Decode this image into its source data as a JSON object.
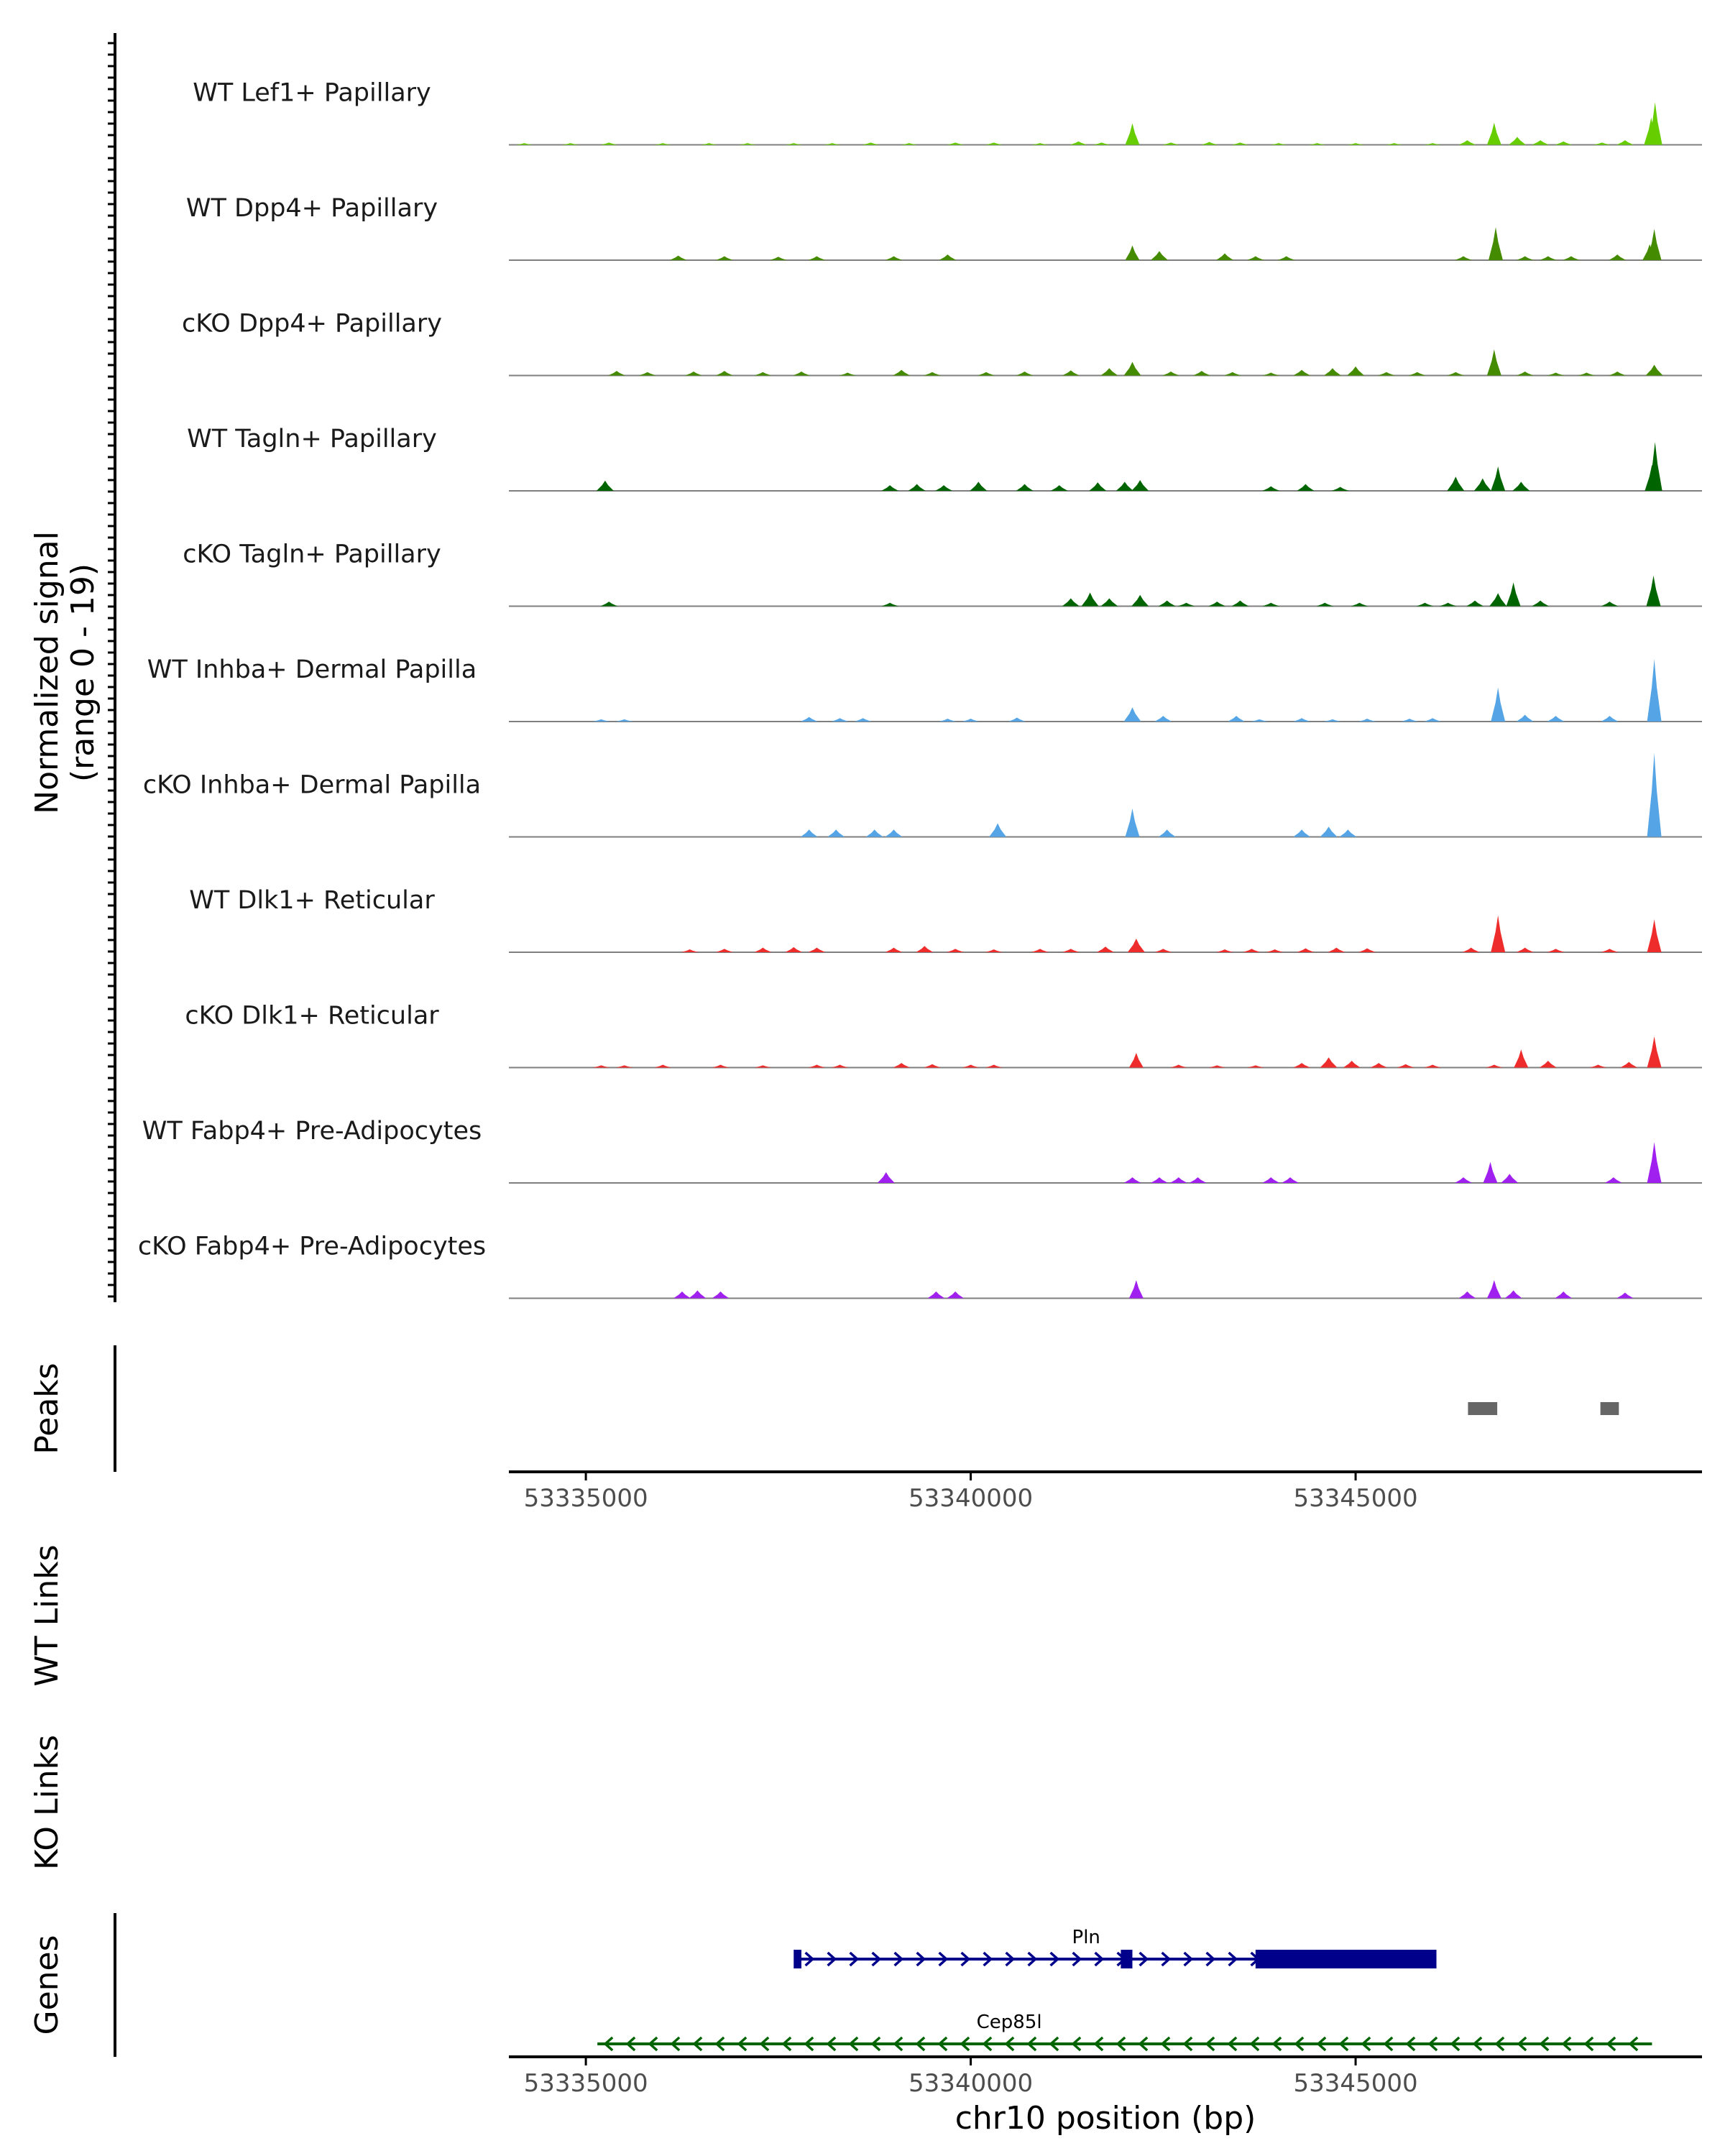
{
  "colors": {
    "axis": "#000000",
    "baseline": "#7f7f7f",
    "tick_text": "#4d4d4d",
    "peak_fill": "#666666",
    "gene_plus": "#00008b",
    "gene_minus": "#006400"
  },
  "labels": {
    "y_signal_line1": "Normalized signal",
    "y_signal_line2": "(range 0 - 19)",
    "peaks": "Peaks",
    "wt_links": "WT Links",
    "ko_links": "KO Links",
    "genes": "Genes",
    "x_axis": "chr10 position (bp)"
  },
  "chart_data": {
    "type": "area",
    "title": "",
    "xlabel": "chr10 position (bp)",
    "ylabel": "Normalized signal (range 0 - 19)",
    "chromosome": "chr10",
    "xlim": [
      53334000,
      53349500
    ],
    "ylim": [
      0,
      19
    ],
    "x_ticks": [
      53335000,
      53340000,
      53345000
    ],
    "x_tick_labels": [
      "53335000",
      "53340000",
      "53345000"
    ],
    "tracks": [
      {
        "name": "WT Lef1+ Papillary",
        "color": "#66cd00",
        "peaks": [
          [
            53334200,
            0.3
          ],
          [
            53334800,
            0.3
          ],
          [
            53335300,
            0.4
          ],
          [
            53336000,
            0.3
          ],
          [
            53336600,
            0.3
          ],
          [
            53337100,
            0.3
          ],
          [
            53337700,
            0.3
          ],
          [
            53338200,
            0.3
          ],
          [
            53338700,
            0.4
          ],
          [
            53339200,
            0.3
          ],
          [
            53339800,
            0.4
          ],
          [
            53340300,
            0.4
          ],
          [
            53340900,
            0.3
          ],
          [
            53341400,
            0.6
          ],
          [
            53341700,
            0.4
          ],
          [
            53342100,
            3.8
          ],
          [
            53342600,
            0.4
          ],
          [
            53343100,
            0.5
          ],
          [
            53343500,
            0.4
          ],
          [
            53344000,
            0.3
          ],
          [
            53344500,
            0.3
          ],
          [
            53345000,
            0.3
          ],
          [
            53345500,
            0.3
          ],
          [
            53346000,
            0.3
          ],
          [
            53346450,
            0.8
          ],
          [
            53346800,
            3.9
          ],
          [
            53347100,
            1.4
          ],
          [
            53347400,
            0.8
          ],
          [
            53347700,
            0.6
          ],
          [
            53348200,
            0.4
          ],
          [
            53348500,
            0.8
          ],
          [
            53348840,
            4.8
          ],
          [
            53348890,
            7.5
          ]
        ]
      },
      {
        "name": "WT Dpp4+ Papillary",
        "color": "#458b00",
        "peaks": [
          [
            53336200,
            0.8
          ],
          [
            53336800,
            0.7
          ],
          [
            53337500,
            0.6
          ],
          [
            53338000,
            0.7
          ],
          [
            53339000,
            0.7
          ],
          [
            53339700,
            1.0
          ],
          [
            53342100,
            2.6
          ],
          [
            53342450,
            1.6
          ],
          [
            53343300,
            1.2
          ],
          [
            53343700,
            0.7
          ],
          [
            53344100,
            0.7
          ],
          [
            53346400,
            0.7
          ],
          [
            53346820,
            5.8
          ],
          [
            53347200,
            0.7
          ],
          [
            53347500,
            0.7
          ],
          [
            53347800,
            0.7
          ],
          [
            53348400,
            1.0
          ],
          [
            53348820,
            2.8
          ],
          [
            53348880,
            5.5
          ]
        ]
      },
      {
        "name": "cKO Dpp4+ Papillary",
        "color": "#458b00",
        "peaks": [
          [
            53335400,
            0.8
          ],
          [
            53335800,
            0.6
          ],
          [
            53336400,
            0.7
          ],
          [
            53336800,
            0.8
          ],
          [
            53337300,
            0.6
          ],
          [
            53337800,
            0.7
          ],
          [
            53338400,
            0.5
          ],
          [
            53339100,
            1.0
          ],
          [
            53339500,
            0.6
          ],
          [
            53340200,
            0.6
          ],
          [
            53340700,
            0.7
          ],
          [
            53341300,
            0.9
          ],
          [
            53341800,
            1.3
          ],
          [
            53342100,
            2.4
          ],
          [
            53342600,
            0.7
          ],
          [
            53343000,
            0.8
          ],
          [
            53343400,
            0.6
          ],
          [
            53343900,
            0.5
          ],
          [
            53344300,
            1.0
          ],
          [
            53344700,
            1.3
          ],
          [
            53345000,
            1.6
          ],
          [
            53345400,
            0.6
          ],
          [
            53345800,
            0.6
          ],
          [
            53346300,
            0.6
          ],
          [
            53346800,
            4.6
          ],
          [
            53347200,
            0.7
          ],
          [
            53347600,
            0.5
          ],
          [
            53348000,
            0.5
          ],
          [
            53348400,
            0.7
          ],
          [
            53348880,
            1.9
          ]
        ]
      },
      {
        "name": "WT Tagln+ Papillary",
        "color": "#006400",
        "peaks": [
          [
            53335250,
            1.8
          ],
          [
            53338950,
            1.0
          ],
          [
            53339300,
            1.2
          ],
          [
            53339650,
            1.0
          ],
          [
            53340100,
            1.6
          ],
          [
            53340700,
            1.2
          ],
          [
            53341150,
            1.0
          ],
          [
            53341650,
            1.5
          ],
          [
            53342000,
            1.6
          ],
          [
            53342200,
            1.9
          ],
          [
            53343900,
            0.8
          ],
          [
            53344350,
            1.2
          ],
          [
            53344800,
            0.7
          ],
          [
            53346300,
            2.5
          ],
          [
            53346650,
            2.2
          ],
          [
            53346850,
            4.3
          ],
          [
            53347150,
            1.6
          ],
          [
            53348850,
            4.6
          ],
          [
            53348890,
            8.6
          ]
        ]
      },
      {
        "name": "cKO Tagln+ Papillary",
        "color": "#006400",
        "peaks": [
          [
            53335300,
            0.8
          ],
          [
            53338950,
            0.6
          ],
          [
            53341300,
            1.4
          ],
          [
            53341550,
            2.4
          ],
          [
            53341800,
            1.4
          ],
          [
            53342200,
            2.0
          ],
          [
            53342550,
            1.0
          ],
          [
            53342800,
            0.6
          ],
          [
            53343200,
            0.8
          ],
          [
            53343500,
            1.0
          ],
          [
            53343900,
            0.6
          ],
          [
            53344600,
            0.6
          ],
          [
            53345050,
            0.6
          ],
          [
            53345900,
            0.6
          ],
          [
            53346200,
            0.6
          ],
          [
            53346550,
            1.0
          ],
          [
            53346850,
            2.3
          ],
          [
            53347050,
            4.2
          ],
          [
            53347400,
            1.0
          ],
          [
            53348300,
            0.8
          ],
          [
            53348870,
            5.4
          ]
        ]
      },
      {
        "name": "WT Inhba+ Dermal Papilla",
        "color": "#55a5e6",
        "peaks": [
          [
            53335200,
            0.4
          ],
          [
            53335500,
            0.4
          ],
          [
            53337900,
            0.8
          ],
          [
            53338300,
            0.6
          ],
          [
            53338600,
            0.6
          ],
          [
            53339700,
            0.5
          ],
          [
            53340000,
            0.5
          ],
          [
            53340600,
            0.7
          ],
          [
            53342100,
            2.5
          ],
          [
            53342500,
            1.0
          ],
          [
            53343450,
            1.0
          ],
          [
            53343750,
            0.4
          ],
          [
            53344300,
            0.6
          ],
          [
            53344700,
            0.4
          ],
          [
            53345150,
            0.5
          ],
          [
            53345700,
            0.5
          ],
          [
            53346000,
            0.6
          ],
          [
            53346850,
            6.0
          ],
          [
            53347200,
            1.2
          ],
          [
            53347600,
            1.0
          ],
          [
            53348300,
            1.0
          ],
          [
            53348880,
            11.0
          ]
        ]
      },
      {
        "name": "cKO Inhba+ Dermal Papilla",
        "color": "#55a5e6",
        "peaks": [
          [
            53337900,
            1.3
          ],
          [
            53338250,
            1.3
          ],
          [
            53338750,
            1.3
          ],
          [
            53339000,
            1.3
          ],
          [
            53340350,
            2.4
          ],
          [
            53342100,
            5.0
          ],
          [
            53342550,
            1.3
          ],
          [
            53344300,
            1.3
          ],
          [
            53344650,
            1.8
          ],
          [
            53344900,
            1.3
          ],
          [
            53348880,
            14.8
          ]
        ]
      },
      {
        "name": "WT Dlk1+ Reticular",
        "color": "#ee2c2c",
        "peaks": [
          [
            53336350,
            0.5
          ],
          [
            53336800,
            0.6
          ],
          [
            53337300,
            0.8
          ],
          [
            53337700,
            0.9
          ],
          [
            53338000,
            0.8
          ],
          [
            53339000,
            0.8
          ],
          [
            53339400,
            1.1
          ],
          [
            53339800,
            0.6
          ],
          [
            53340300,
            0.5
          ],
          [
            53340900,
            0.6
          ],
          [
            53341300,
            0.6
          ],
          [
            53341750,
            1.0
          ],
          [
            53342150,
            2.4
          ],
          [
            53342500,
            0.6
          ],
          [
            53343300,
            0.5
          ],
          [
            53343650,
            0.6
          ],
          [
            53343950,
            0.5
          ],
          [
            53344350,
            0.7
          ],
          [
            53344750,
            0.8
          ],
          [
            53345150,
            0.7
          ],
          [
            53346500,
            0.8
          ],
          [
            53346850,
            6.5
          ],
          [
            53347200,
            0.8
          ],
          [
            53347600,
            0.6
          ],
          [
            53348300,
            0.6
          ],
          [
            53348880,
            5.8
          ]
        ]
      },
      {
        "name": "cKO Dlk1+ Reticular",
        "color": "#ee2c2c",
        "peaks": [
          [
            53335200,
            0.4
          ],
          [
            53335500,
            0.4
          ],
          [
            53336000,
            0.5
          ],
          [
            53336750,
            0.5
          ],
          [
            53337300,
            0.4
          ],
          [
            53338000,
            0.5
          ],
          [
            53338300,
            0.5
          ],
          [
            53339100,
            0.8
          ],
          [
            53339500,
            0.6
          ],
          [
            53340000,
            0.5
          ],
          [
            53340300,
            0.5
          ],
          [
            53342150,
            2.6
          ],
          [
            53342700,
            0.5
          ],
          [
            53343200,
            0.4
          ],
          [
            53343700,
            0.4
          ],
          [
            53344300,
            0.8
          ],
          [
            53344650,
            1.8
          ],
          [
            53344950,
            1.2
          ],
          [
            53345300,
            0.8
          ],
          [
            53345650,
            0.6
          ],
          [
            53346000,
            0.5
          ],
          [
            53346800,
            0.5
          ],
          [
            53347150,
            3.2
          ],
          [
            53347500,
            1.2
          ],
          [
            53348150,
            0.5
          ],
          [
            53348550,
            1.0
          ],
          [
            53348880,
            5.5
          ]
        ]
      },
      {
        "name": "WT Fabp4+ Pre-Adipocytes",
        "color": "#a020f0",
        "peaks": [
          [
            53338900,
            1.9
          ],
          [
            53342100,
            1.0
          ],
          [
            53342450,
            1.0
          ],
          [
            53342700,
            1.0
          ],
          [
            53342950,
            1.0
          ],
          [
            53343900,
            1.0
          ],
          [
            53344150,
            1.0
          ],
          [
            53346400,
            1.0
          ],
          [
            53346750,
            3.7
          ],
          [
            53347000,
            1.6
          ],
          [
            53348350,
            1.0
          ],
          [
            53348880,
            7.2
          ]
        ]
      },
      {
        "name": "cKO Fabp4+ Pre-Adipocytes",
        "color": "#a020f0",
        "peaks": [
          [
            53336250,
            1.2
          ],
          [
            53336450,
            1.4
          ],
          [
            53336750,
            1.2
          ],
          [
            53339550,
            1.2
          ],
          [
            53339800,
            1.2
          ],
          [
            53342150,
            3.2
          ],
          [
            53346450,
            1.2
          ],
          [
            53346800,
            3.2
          ],
          [
            53347050,
            1.4
          ],
          [
            53347700,
            1.2
          ],
          [
            53348500,
            1.0
          ]
        ]
      }
    ],
    "peak_regions": [
      [
        53346460,
        53346840
      ],
      [
        53348180,
        53348420
      ]
    ],
    "genes": [
      {
        "name": "Pln",
        "strand": "+",
        "start": 53337750,
        "end": 53346050,
        "exons": [
          [
            53337700,
            53337800
          ],
          [
            53341950,
            53342100
          ],
          [
            53343700,
            53346050
          ]
        ]
      },
      {
        "name": "Cep85l",
        "strand": "-",
        "start": 53335150,
        "end": 53348850,
        "exons": []
      }
    ]
  }
}
